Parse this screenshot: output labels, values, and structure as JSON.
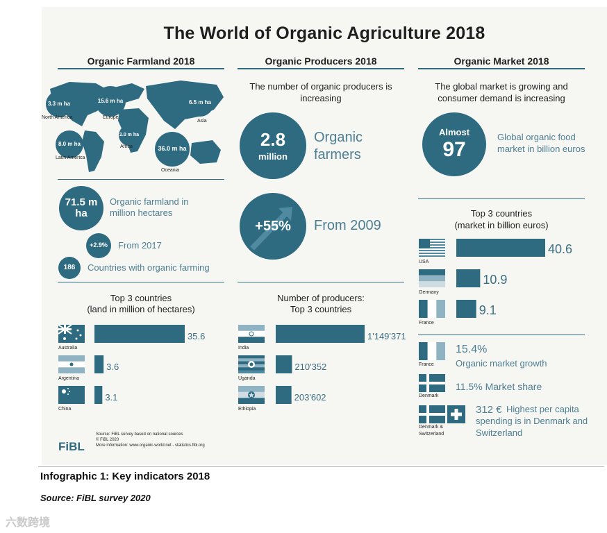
{
  "title": "The World of Organic Agriculture 2018",
  "colors": {
    "accent": "#2e6a80",
    "text": "#4d7f92",
    "panel": "#f6f6f3"
  },
  "farmland": {
    "heading": "Organic Farmland 2018",
    "regions": [
      {
        "value": "3.3 m ha",
        "name": "North America"
      },
      {
        "value": "15.6 m ha",
        "name": "Europe"
      },
      {
        "value": "6.5 m ha",
        "name": "Asia"
      },
      {
        "value": "8.0 m ha",
        "name": "Latin America"
      },
      {
        "value": "2.0 m ha",
        "name": "Africa"
      },
      {
        "value": "36.0 m ha",
        "name": "Oceania"
      }
    ],
    "total_value": "71.5 m ha",
    "total_label": "Organic farmland in million hectares",
    "growth_value": "+2.9%",
    "growth_label": "From 2017",
    "countries_value": "186",
    "countries_label": "Countries with organic farming",
    "top_heading_1": "Top 3 countries",
    "top_heading_2": "(land in million of hectares)",
    "source_1": "Source: FiBL survey based on national sources",
    "source_2": "© FiBL 2020",
    "source_3": "More information: www.organic-world.net - statistics.fibl.org",
    "logo": "FiBL"
  },
  "producers": {
    "heading": "Organic Producers 2018",
    "intro": "The number of organic producers is increasing",
    "count_value": "2.8",
    "count_unit": "million",
    "count_label_1": "Organic",
    "count_label_2": "farmers",
    "growth_value": "+55%",
    "growth_label": "From 2009",
    "top_heading_1": "Number of producers:",
    "top_heading_2": "Top 3 countries"
  },
  "market": {
    "heading": "Organic Market 2018",
    "intro": "The global market is growing and consumer demand is increasing",
    "size_prefix": "Almost",
    "size_value": "97",
    "size_label": "Global organic food market in billion euros",
    "top_heading_1": "Top 3 countries",
    "top_heading_2": "(market in billion euros)",
    "stats": [
      {
        "flag": "France",
        "value": "15.4%",
        "label": "Organic market growth"
      },
      {
        "flag": "Denmark",
        "value": "11.5%",
        "label": "Market share"
      },
      {
        "flag": "Denmark & Switzerland",
        "value": "312 €",
        "label": "Highest per capita spending is in Denmark and Switzerland"
      }
    ]
  },
  "chart_data": [
    {
      "type": "bar",
      "title": "Top 3 countries (land in million of hectares)",
      "categories": [
        "Australia",
        "Argentina",
        "China"
      ],
      "values": [
        35.6,
        3.6,
        3.1
      ],
      "labels": [
        "35.6",
        "3.6",
        "3.1"
      ],
      "xlim": [
        0,
        35.6
      ]
    },
    {
      "type": "bar",
      "title": "Number of producers: Top 3 countries",
      "categories": [
        "India",
        "Uganda",
        "Ethiopia"
      ],
      "values": [
        1149371,
        210352,
        203602
      ],
      "labels": [
        "1'149'371",
        "210'352",
        "203'602"
      ],
      "xlim": [
        0,
        1149371
      ]
    },
    {
      "type": "bar",
      "title": "Top 3 countries (market in billion euros)",
      "categories": [
        "USA",
        "Germany",
        "France"
      ],
      "values": [
        40.6,
        10.9,
        9.1
      ],
      "labels": [
        "40.6",
        "10.9",
        "9.1"
      ],
      "xlim": [
        0,
        40.6
      ]
    }
  ],
  "caption": "Infographic 1: Key indicators 2018",
  "caption_source": "Source: FiBL survey 2020",
  "watermark": "六数跨境"
}
